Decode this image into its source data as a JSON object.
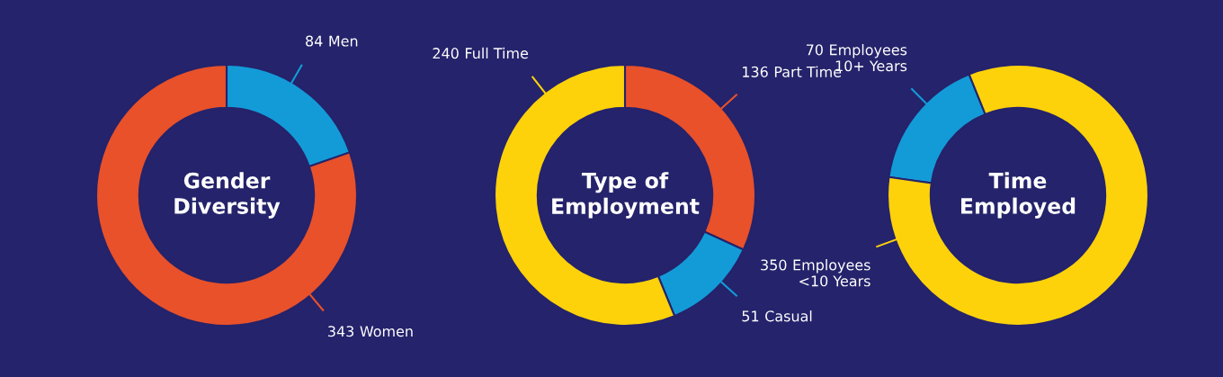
{
  "chart_data": [
    {
      "type": "donut",
      "title": "Gender\nDiversity",
      "categories": [
        "Men",
        "Women"
      ],
      "values": [
        84,
        343
      ],
      "colors": [
        "#139bd8",
        "#e8512a"
      ],
      "data_labels": true
    },
    {
      "type": "donut",
      "title": "Type of\nEmployment",
      "categories": [
        "Part Time",
        "Casual",
        "Full Time"
      ],
      "values": [
        136,
        51,
        240
      ],
      "colors": [
        "#e8512a",
        "#139bd8",
        "#fdd20a"
      ],
      "data_labels": true
    },
    {
      "type": "donut",
      "title": "Time\nEmployed",
      "categories": [
        "Employees\n10+ Years",
        "Employees\n<10 Years"
      ],
      "values": [
        70,
        350
      ],
      "colors": [
        "#139bd8",
        "#fdd20a"
      ],
      "data_labels": true
    }
  ]
}
